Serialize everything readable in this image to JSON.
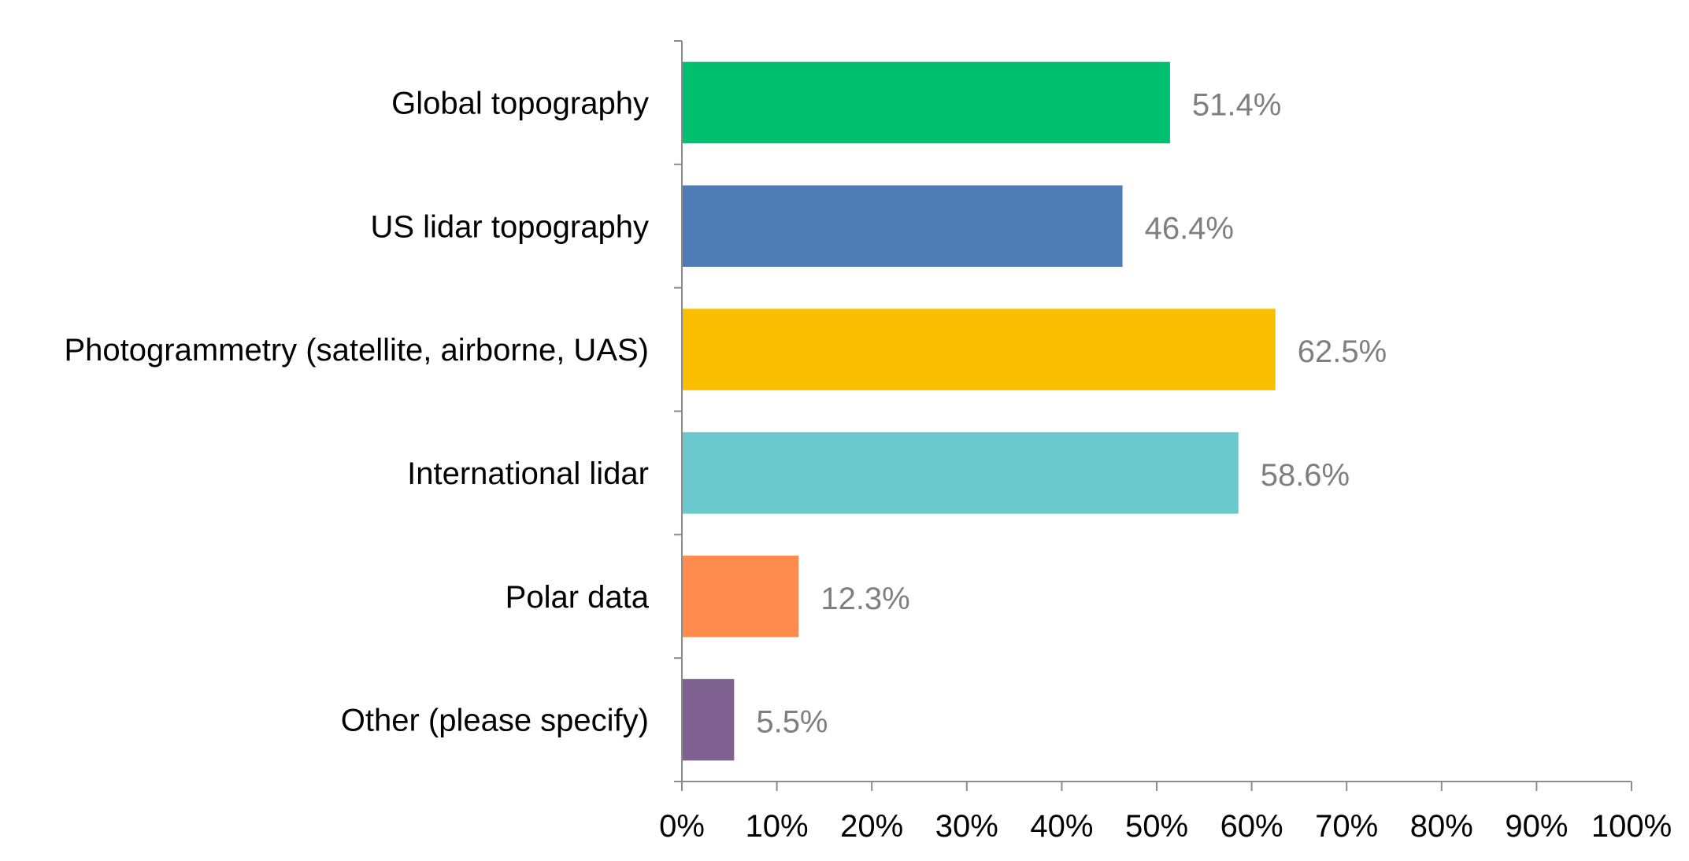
{
  "chart_data": {
    "type": "bar",
    "orientation": "horizontal",
    "categories": [
      "Global topography",
      "US lidar topography",
      "Photogrammetry (satellite, airborne, UAS)",
      "International lidar",
      "Polar data",
      "Other (please specify)"
    ],
    "values": [
      51.4,
      46.4,
      62.5,
      58.6,
      12.3,
      5.5
    ],
    "data_labels": [
      "51.4%",
      "46.4%",
      "62.5%",
      "58.6%",
      "12.3%",
      "5.5%"
    ],
    "colors": [
      "#00bf6f",
      "#507cb6",
      "#f9be00",
      "#6bc8cd",
      "#ff8b4f",
      "#7f6192"
    ],
    "xlim": [
      0,
      100
    ],
    "xticks": [
      0,
      10,
      20,
      30,
      40,
      50,
      60,
      70,
      80,
      90,
      100
    ],
    "xtick_labels": [
      "0%",
      "10%",
      "20%",
      "30%",
      "40%",
      "50%",
      "60%",
      "70%",
      "80%",
      "90%",
      "100%"
    ],
    "grid": false,
    "legend": "none",
    "title": "",
    "xlabel": "",
    "ylabel": ""
  }
}
